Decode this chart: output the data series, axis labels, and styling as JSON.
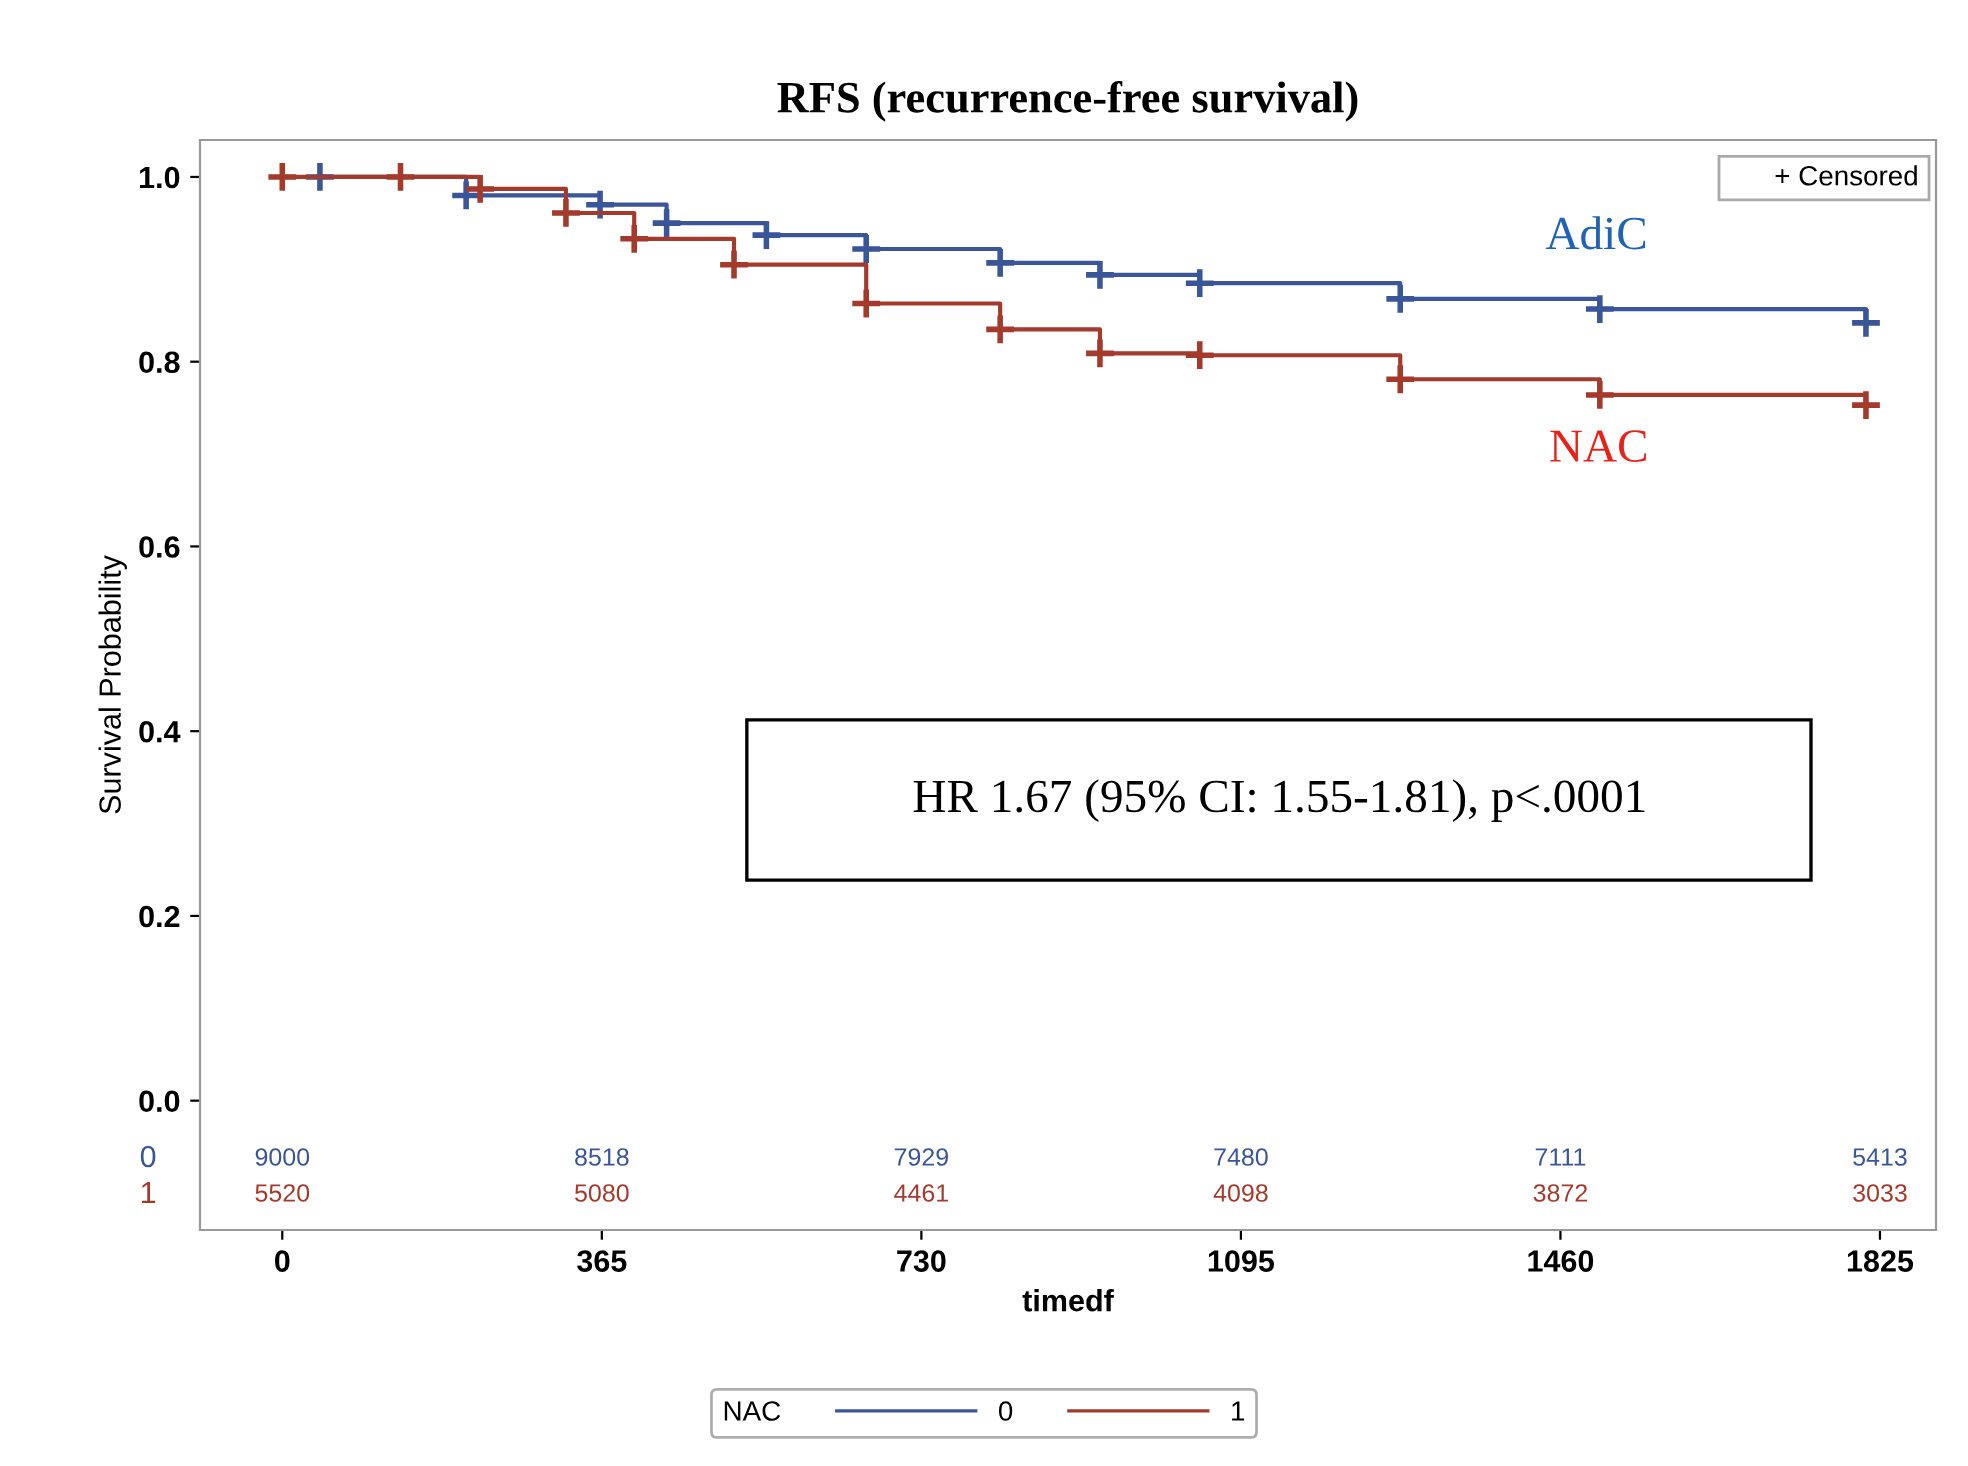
{
  "chart_data": {
    "type": "step",
    "title": "RFS (recurrence-free survival)",
    "xlabel": "timedf",
    "ylabel": "Survival Probability",
    "legend_title": "NAC",
    "legend": "bottom",
    "marker": "cross",
    "line_style": "solid",
    "grid": false,
    "xlim": [
      -94,
      1889
    ],
    "ylim": [
      -0.14,
      1.04
    ],
    "xticks": [
      0,
      365,
      730,
      1095,
      1460,
      1825
    ],
    "yticks": [
      {
        "value": 0,
        "label": "0.0"
      },
      {
        "value": 0.2,
        "label": "0.2"
      },
      {
        "value": 0.4,
        "label": "0.4"
      },
      {
        "value": 0.6,
        "label": "0.6"
      },
      {
        "value": 0.8,
        "label": "0.8"
      },
      {
        "value": 1,
        "label": "1.0"
      }
    ],
    "series": [
      {
        "name": "0",
        "color": "#3a5598",
        "x": [
          43,
          210,
          363,
          439,
          553,
          667,
          820,
          934,
          1048,
          1277,
          1505,
          1809
        ],
        "values": [
          1.0,
          0.98,
          0.97,
          0.95,
          0.937,
          0.922,
          0.907,
          0.894,
          0.885,
          0.868,
          0.857,
          0.842
        ]
      },
      {
        "name": "1",
        "color": "#a33a2c",
        "x": [
          0,
          135,
          226,
          324,
          402,
          516,
          667,
          820,
          934,
          1048,
          1277,
          1505,
          1809
        ],
        "values": [
          1.0,
          1.0,
          0.987,
          0.961,
          0.933,
          0.905,
          0.863,
          0.835,
          0.809,
          0.807,
          0.781,
          0.764,
          0.753
        ]
      }
    ],
    "annotations": [
      "AdiC",
      "NAC",
      "HR 1.67 (95% CI: 1.55-1.81), p<.0001",
      "+ Censored",
      "0",
      "9000",
      "8518",
      "7929",
      "7480",
      "7111",
      "5413",
      "1",
      "5520",
      "5080",
      "4461",
      "4098",
      "3872",
      "3033"
    ]
  }
}
